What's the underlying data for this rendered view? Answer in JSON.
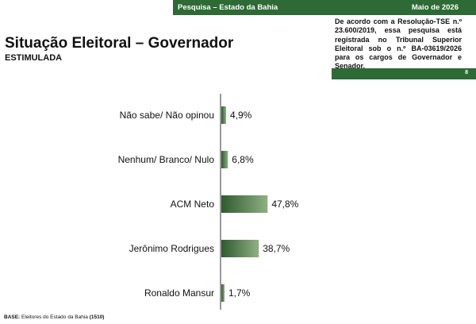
{
  "header": {
    "survey_title": "Pesquisa – Estado da Bahia",
    "date": "Maio de 2026",
    "notice": "De acordo com a Resolução-TSE n.º 23.600/2019, essa pesquisa está registrada no Tribunal Superior Eleitoral sob o n.º BA-03619/2026 para os cargos de Governador e Senador.",
    "page_number": "8"
  },
  "title": "Situação Eleitoral – Governador",
  "subtitle": "ESTIMULADA",
  "footer": {
    "label": "BASE:",
    "text": " Eleitores do Estado da Bahia ",
    "count": "(1510)"
  },
  "colors": {
    "brand_green": "#2d6a35",
    "bar_dark": "#2f5a2f",
    "bar_light": "#8fb084"
  },
  "chart_data": {
    "type": "bar",
    "orientation": "horizontal",
    "title": "Situação Eleitoral – Governador",
    "categories": [
      "Não sabe/ Não opinou",
      "Nenhum/ Branco/ Nulo",
      "ACM Neto",
      "Jerônimo Rodrigues",
      "Ronaldo Mansur"
    ],
    "values": [
      4.9,
      6.8,
      47.8,
      38.7,
      1.7
    ],
    "value_labels": [
      "4,9%",
      "6,8%",
      "47,8%",
      "38,7%",
      "1,7%"
    ],
    "unit": "%",
    "xlim": [
      0,
      100
    ],
    "grid": false,
    "legend": "none"
  }
}
